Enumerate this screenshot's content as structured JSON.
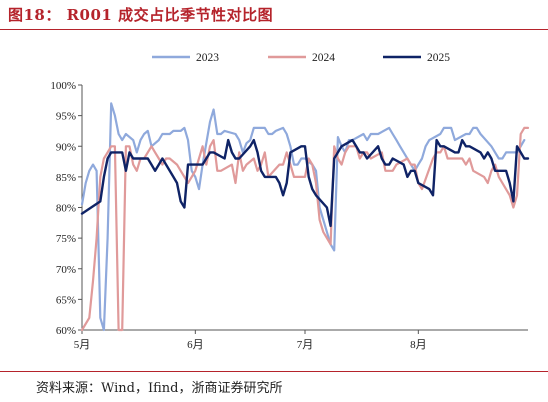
{
  "figure_title": "图18：  R001 成交占比季节性对比图",
  "source_note": "资料来源：Wind，Ifind，浙商证券研究所",
  "chart_data": {
    "type": "line",
    "title": "",
    "xlabel": "",
    "ylabel": "",
    "x_ticks": [
      "5月",
      "6月",
      "7月",
      "8月"
    ],
    "x_domain": [
      "05-01",
      "08-31"
    ],
    "ylim": [
      60,
      100
    ],
    "y_ticks": [
      "60%",
      "65%",
      "70%",
      "75%",
      "80%",
      "85%",
      "90%",
      "95%",
      "100%"
    ],
    "legend_position": "top",
    "grid": false,
    "series": [
      {
        "name": "2023",
        "color": "#8fa9dc",
        "points": [
          [
            "05-01",
            80.5
          ],
          [
            "05-02",
            84
          ],
          [
            "05-03",
            86
          ],
          [
            "05-04",
            87
          ],
          [
            "05-05",
            86
          ],
          [
            "05-06",
            62
          ],
          [
            "05-07",
            60
          ],
          [
            "05-08",
            75
          ],
          [
            "05-09",
            97
          ],
          [
            "05-10",
            95
          ],
          [
            "05-11",
            92
          ],
          [
            "05-12",
            91
          ],
          [
            "05-13",
            92
          ],
          [
            "05-15",
            91
          ],
          [
            "05-16",
            89
          ],
          [
            "05-17",
            91
          ],
          [
            "05-18",
            92
          ],
          [
            "05-19",
            92.5
          ],
          [
            "05-20",
            90
          ],
          [
            "05-22",
            91
          ],
          [
            "05-23",
            92
          ],
          [
            "05-24",
            92
          ],
          [
            "05-25",
            92
          ],
          [
            "05-26",
            92.5
          ],
          [
            "05-28",
            92.5
          ],
          [
            "05-29",
            93
          ],
          [
            "05-30",
            91
          ],
          [
            "05-31",
            86
          ],
          [
            "06-01",
            85
          ],
          [
            "06-02",
            83
          ],
          [
            "06-03",
            87
          ],
          [
            "06-05",
            94
          ],
          [
            "06-06",
            96
          ],
          [
            "06-07",
            92
          ],
          [
            "06-08",
            92
          ],
          [
            "06-09",
            92.5
          ],
          [
            "06-12",
            92
          ],
          [
            "06-13",
            91
          ],
          [
            "06-14",
            89
          ],
          [
            "06-15",
            90.5
          ],
          [
            "06-16",
            91
          ],
          [
            "06-17",
            93
          ],
          [
            "06-19",
            93
          ],
          [
            "06-20",
            93
          ],
          [
            "06-21",
            92
          ],
          [
            "06-22",
            92
          ],
          [
            "06-23",
            92.5
          ],
          [
            "06-25",
            93
          ],
          [
            "06-26",
            92
          ],
          [
            "06-27",
            90
          ],
          [
            "06-28",
            87
          ],
          [
            "06-29",
            87
          ],
          [
            "06-30",
            88
          ],
          [
            "07-01",
            88
          ],
          [
            "07-03",
            87
          ],
          [
            "07-04",
            86
          ],
          [
            "07-05",
            80
          ],
          [
            "07-06",
            78
          ],
          [
            "07-07",
            76
          ],
          [
            "07-08",
            74
          ],
          [
            "07-09",
            73
          ],
          [
            "07-10",
            91.5
          ],
          [
            "07-11",
            90
          ],
          [
            "07-12",
            89
          ],
          [
            "07-13",
            91
          ],
          [
            "07-14",
            91
          ],
          [
            "07-17",
            92
          ],
          [
            "07-18",
            91
          ],
          [
            "07-19",
            92
          ],
          [
            "07-20",
            92
          ],
          [
            "07-21",
            92
          ],
          [
            "07-24",
            93
          ],
          [
            "07-25",
            92
          ],
          [
            "07-26",
            91
          ],
          [
            "07-27",
            90
          ],
          [
            "07-28",
            89
          ],
          [
            "07-31",
            86
          ],
          [
            "08-01",
            87
          ],
          [
            "08-02",
            88
          ],
          [
            "08-03",
            90
          ],
          [
            "08-04",
            91
          ],
          [
            "08-07",
            92
          ],
          [
            "08-08",
            93
          ],
          [
            "08-09",
            93
          ],
          [
            "08-10",
            93
          ],
          [
            "08-11",
            91
          ],
          [
            "08-14",
            92
          ],
          [
            "08-15",
            92
          ],
          [
            "08-16",
            93
          ],
          [
            "08-17",
            93
          ],
          [
            "08-18",
            92
          ],
          [
            "08-21",
            90
          ],
          [
            "08-22",
            89
          ],
          [
            "08-23",
            88
          ],
          [
            "08-24",
            88
          ],
          [
            "08-25",
            89
          ],
          [
            "08-28",
            89
          ],
          [
            "08-29",
            90
          ],
          [
            "08-30",
            91
          ]
        ]
      },
      {
        "name": "2024",
        "color": "#e09a9a",
        "points": [
          [
            "05-01",
            60
          ],
          [
            "05-03",
            62
          ],
          [
            "05-04",
            68
          ],
          [
            "05-05",
            75
          ],
          [
            "05-06",
            85
          ],
          [
            "05-07",
            88
          ],
          [
            "05-08",
            89
          ],
          [
            "05-09",
            90
          ],
          [
            "05-10",
            90
          ],
          [
            "05-11",
            60
          ],
          [
            "05-12",
            60
          ],
          [
            "05-13",
            90
          ],
          [
            "05-14",
            90
          ],
          [
            "05-15",
            87
          ],
          [
            "05-16",
            86
          ],
          [
            "05-17",
            88
          ],
          [
            "05-18",
            88
          ],
          [
            "05-20",
            90
          ],
          [
            "05-21",
            89
          ],
          [
            "05-22",
            88
          ],
          [
            "05-23",
            87
          ],
          [
            "05-24",
            88
          ],
          [
            "05-25",
            88
          ],
          [
            "05-27",
            87
          ],
          [
            "05-28",
            86
          ],
          [
            "05-29",
            85
          ],
          [
            "05-30",
            84
          ],
          [
            "05-31",
            85
          ],
          [
            "06-01",
            86
          ],
          [
            "06-03",
            90
          ],
          [
            "06-04",
            87
          ],
          [
            "06-05",
            90
          ],
          [
            "06-06",
            91
          ],
          [
            "06-07",
            86
          ],
          [
            "06-08",
            86
          ],
          [
            "06-11",
            87
          ],
          [
            "06-12",
            84
          ],
          [
            "06-13",
            89
          ],
          [
            "06-14",
            86
          ],
          [
            "06-15",
            87
          ],
          [
            "06-17",
            88
          ],
          [
            "06-18",
            86
          ],
          [
            "06-19",
            87
          ],
          [
            "06-20",
            89
          ],
          [
            "06-21",
            85
          ],
          [
            "06-24",
            87
          ],
          [
            "06-25",
            87
          ],
          [
            "06-26",
            89
          ],
          [
            "06-27",
            87
          ],
          [
            "06-28",
            85
          ],
          [
            "07-01",
            85
          ],
          [
            "07-02",
            88
          ],
          [
            "07-03",
            87
          ],
          [
            "07-04",
            84
          ],
          [
            "07-05",
            78
          ],
          [
            "07-06",
            76
          ],
          [
            "07-07",
            75
          ],
          [
            "07-08",
            74
          ],
          [
            "07-09",
            90
          ],
          [
            "07-10",
            88
          ],
          [
            "07-11",
            87
          ],
          [
            "07-12",
            89
          ],
          [
            "07-13",
            90
          ],
          [
            "07-15",
            90
          ],
          [
            "07-16",
            88
          ],
          [
            "07-17",
            89
          ],
          [
            "07-18",
            89
          ],
          [
            "07-19",
            88
          ],
          [
            "07-22",
            89
          ],
          [
            "07-23",
            86
          ],
          [
            "07-24",
            86
          ],
          [
            "07-25",
            86
          ],
          [
            "07-26",
            87
          ],
          [
            "07-29",
            88
          ],
          [
            "07-30",
            87
          ],
          [
            "07-31",
            87
          ],
          [
            "08-01",
            84
          ],
          [
            "08-02",
            83
          ],
          [
            "08-05",
            88
          ],
          [
            "08-06",
            89
          ],
          [
            "08-07",
            89
          ],
          [
            "08-08",
            90
          ],
          [
            "08-09",
            88
          ],
          [
            "08-12",
            88
          ],
          [
            "08-13",
            88
          ],
          [
            "08-14",
            87
          ],
          [
            "08-15",
            88
          ],
          [
            "08-16",
            86
          ],
          [
            "08-19",
            85
          ],
          [
            "08-20",
            84
          ],
          [
            "08-21",
            86
          ],
          [
            "08-22",
            87
          ],
          [
            "08-23",
            85
          ],
          [
            "08-26",
            82
          ],
          [
            "08-27",
            80
          ],
          [
            "08-28",
            82
          ],
          [
            "08-29",
            92
          ],
          [
            "08-30",
            93
          ],
          [
            "08-31",
            93
          ]
        ]
      },
      {
        "name": "2025",
        "color": "#0f2366",
        "points": [
          [
            "05-01",
            79
          ],
          [
            "05-06",
            81
          ],
          [
            "05-07",
            85
          ],
          [
            "05-08",
            88
          ],
          [
            "05-09",
            89
          ],
          [
            "05-12",
            89
          ],
          [
            "05-13",
            86
          ],
          [
            "05-14",
            89
          ],
          [
            "05-15",
            88
          ],
          [
            "05-16",
            88
          ],
          [
            "05-19",
            88
          ],
          [
            "05-20",
            87
          ],
          [
            "05-21",
            86
          ],
          [
            "05-22",
            87
          ],
          [
            "05-23",
            88
          ],
          [
            "05-26",
            85
          ],
          [
            "05-27",
            84
          ],
          [
            "05-28",
            81
          ],
          [
            "05-29",
            80
          ],
          [
            "05-30",
            87
          ],
          [
            "06-03",
            87
          ],
          [
            "06-04",
            88
          ],
          [
            "06-05",
            89
          ],
          [
            "06-06",
            89
          ],
          [
            "06-09",
            88
          ],
          [
            "06-10",
            91
          ],
          [
            "06-11",
            89
          ],
          [
            "06-12",
            88
          ],
          [
            "06-13",
            88
          ],
          [
            "06-16",
            90
          ],
          [
            "06-17",
            91
          ],
          [
            "06-18",
            89
          ],
          [
            "06-19",
            86
          ],
          [
            "06-20",
            85
          ],
          [
            "06-23",
            85
          ],
          [
            "06-24",
            84
          ],
          [
            "06-25",
            82
          ],
          [
            "06-26",
            84
          ],
          [
            "06-27",
            89
          ],
          [
            "06-30",
            90
          ],
          [
            "07-01",
            90
          ],
          [
            "07-02",
            85
          ],
          [
            "07-03",
            83
          ],
          [
            "07-04",
            82
          ],
          [
            "07-07",
            80
          ],
          [
            "07-08",
            77
          ],
          [
            "07-09",
            88
          ],
          [
            "07-10",
            89
          ],
          [
            "07-11",
            90
          ],
          [
            "07-14",
            91
          ],
          [
            "07-15",
            90
          ],
          [
            "07-16",
            89
          ],
          [
            "07-17",
            89
          ],
          [
            "07-18",
            88
          ],
          [
            "07-21",
            90
          ],
          [
            "07-22",
            88
          ],
          [
            "07-23",
            87
          ],
          [
            "07-24",
            87
          ],
          [
            "07-25",
            88
          ],
          [
            "07-28",
            87
          ],
          [
            "07-29",
            85
          ],
          [
            "07-30",
            86
          ],
          [
            "07-31",
            86
          ],
          [
            "08-01",
            84
          ],
          [
            "08-04",
            83
          ],
          [
            "08-05",
            82
          ],
          [
            "08-06",
            91
          ],
          [
            "08-07",
            90
          ],
          [
            "08-08",
            90
          ],
          [
            "08-11",
            89
          ],
          [
            "08-12",
            89
          ],
          [
            "08-13",
            91
          ],
          [
            "08-14",
            90
          ],
          [
            "08-15",
            90
          ],
          [
            "08-18",
            89
          ],
          [
            "08-19",
            88
          ],
          [
            "08-20",
            89
          ],
          [
            "08-21",
            88
          ],
          [
            "08-22",
            86
          ],
          [
            "08-25",
            86
          ],
          [
            "08-26",
            84
          ],
          [
            "08-27",
            81
          ],
          [
            "08-28",
            90
          ],
          [
            "08-29",
            89
          ],
          [
            "08-30",
            88
          ],
          [
            "08-31",
            88
          ]
        ]
      }
    ]
  }
}
